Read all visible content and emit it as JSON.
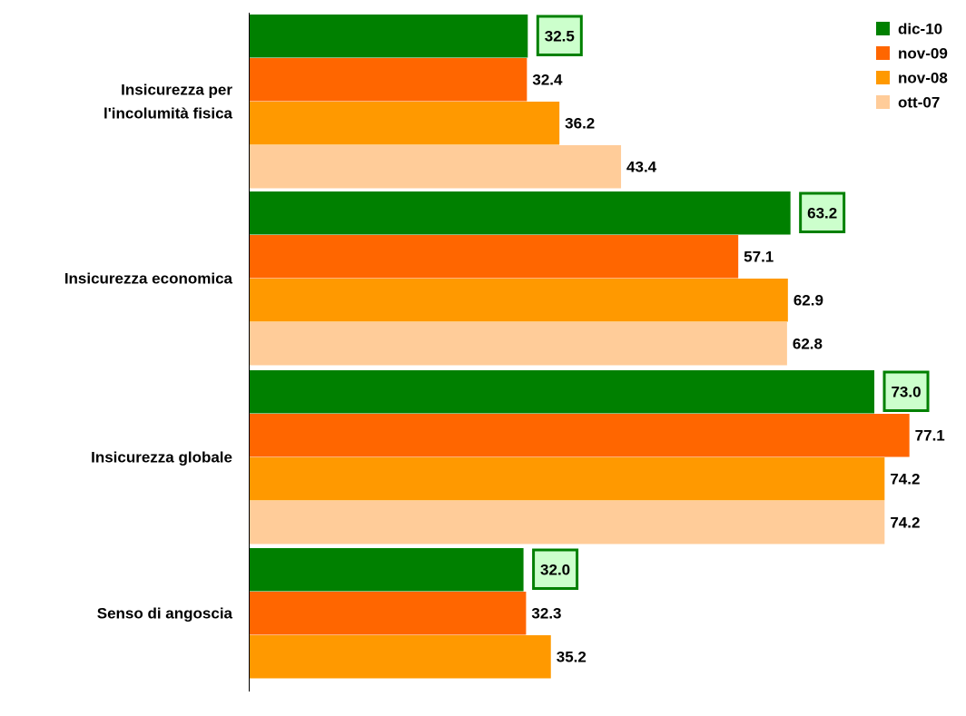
{
  "chart_data": {
    "type": "bar",
    "orientation": "horizontal",
    "categories": [
      [
        "Insicurezza per",
        "l'incolumità fisica"
      ],
      [
        "Insicurezza economica"
      ],
      [
        "Insicurezza globale"
      ],
      [
        "Senso di angoscia"
      ]
    ],
    "series": [
      {
        "name": "dic-10",
        "color": "#008000",
        "values": [
          32.5,
          63.2,
          73.0,
          32.0
        ],
        "labels": [
          "32.5",
          "63.2",
          "73.0",
          "32.0"
        ],
        "highlight_labels": true
      },
      {
        "name": "nov-09",
        "color": "#ff6600",
        "values": [
          32.4,
          57.1,
          77.1,
          32.3
        ],
        "labels": [
          "32.4",
          "57.1",
          "77.1",
          "32.3"
        ]
      },
      {
        "name": "nov-08",
        "color": "#ff9900",
        "values": [
          36.2,
          62.9,
          74.2,
          35.2
        ],
        "labels": [
          "36.2",
          "62.9",
          "74.2",
          "35.2"
        ]
      },
      {
        "name": "ott-07",
        "color": "#ffcc99",
        "values": [
          43.4,
          62.8,
          74.2,
          null
        ],
        "labels": [
          "43.4",
          "62.8",
          "74.2",
          ""
        ]
      }
    ],
    "highlight_box": {
      "fill": "#ccffcc",
      "stroke": "#008000"
    },
    "xlim": [
      0,
      100
    ],
    "grid": false,
    "legend_position": "top-right"
  }
}
